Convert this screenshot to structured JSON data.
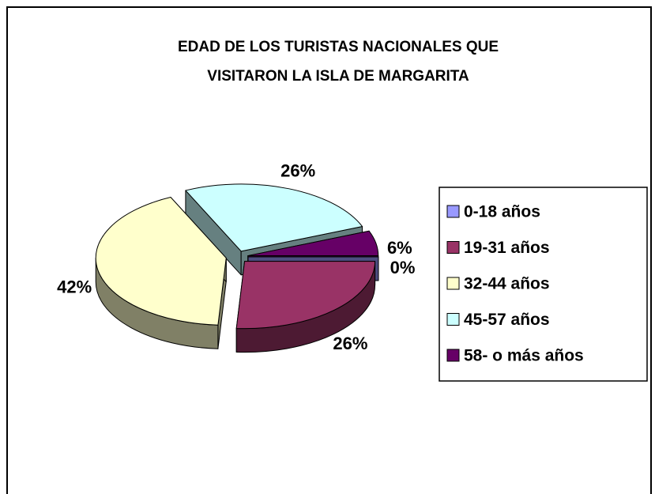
{
  "chart_data": {
    "type": "pie3d",
    "title": [
      "EDAD DE LOS  TURISTAS NACIONALES QUE",
      "VISITARON LA ISLA DE MARGARITA"
    ],
    "categories": [
      "0-18 años",
      "19-31 años",
      "32-44 años",
      "45-57 años",
      "58- o más años"
    ],
    "values": [
      0,
      26,
      42,
      26,
      6
    ],
    "value_labels": [
      "0%",
      "26%",
      "42%",
      "26%",
      "6%"
    ],
    "colors": [
      "#9999ff",
      "#993366",
      "#ffffcc",
      "#ccffff",
      "#660066"
    ],
    "legend": "right"
  }
}
